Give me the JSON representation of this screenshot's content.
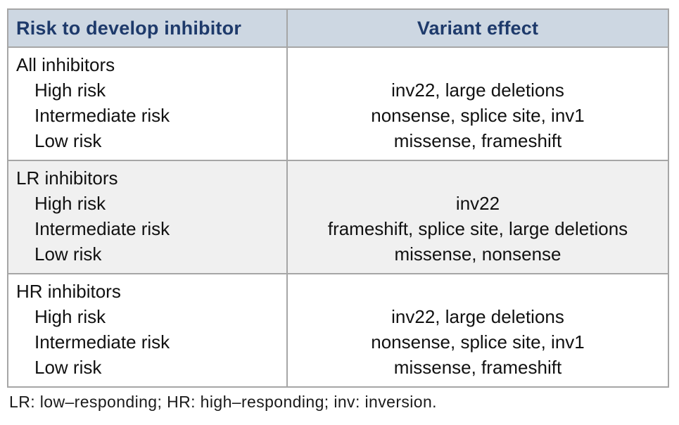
{
  "table": {
    "headers": {
      "risk": "Risk to develop inhibitor",
      "variant": "Variant effect"
    },
    "groups": [
      {
        "name": "All inhibitors",
        "risk_levels": [
          "High risk",
          "Intermediate risk",
          "Low risk"
        ],
        "variant_effects": [
          "inv22, large deletions",
          "nonsense, splice site, inv1",
          "missense, frameshift"
        ]
      },
      {
        "name": "LR inhibitors",
        "risk_levels": [
          "High risk",
          "Intermediate risk",
          "Low risk"
        ],
        "variant_effects": [
          "inv22",
          "frameshift, splice site, large deletions",
          "missense, nonsense"
        ]
      },
      {
        "name": "HR inhibitors",
        "risk_levels": [
          "High risk",
          "Intermediate risk",
          "Low risk"
        ],
        "variant_effects": [
          "inv22, large deletions",
          "nonsense, splice site, inv1",
          "missense, frameshift"
        ]
      }
    ]
  },
  "footnote": "LR: low–responding; HR: high–responding; inv: inversion.",
  "colors": {
    "header_bg": "#cdd7e2",
    "header_text": "#1e3a6b",
    "border": "#a6a6a6",
    "alt_row_bg": "#f0f0f0",
    "body_text": "#111111"
  }
}
